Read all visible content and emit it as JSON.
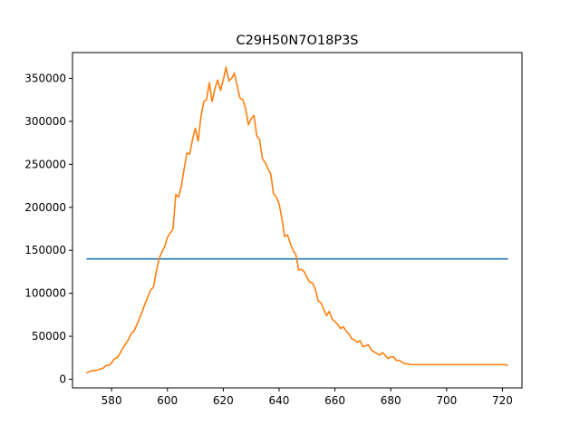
{
  "chart_data": {
    "type": "line",
    "title": "C29H50N7O18P3S",
    "xlabel": "",
    "ylabel": "",
    "xlim": [
      566,
      727
    ],
    "ylim": [
      -10000,
      380000
    ],
    "grid": false,
    "legend": "none",
    "x_ticks": [
      580,
      600,
      620,
      640,
      660,
      680,
      700,
      720
    ],
    "y_ticks": [
      0,
      50000,
      100000,
      150000,
      200000,
      250000,
      300000,
      350000
    ],
    "series": [
      {
        "color": "#1f77b4",
        "x": [
          571,
          722
        ],
        "y": [
          140000,
          140000
        ]
      },
      {
        "color": "#ff7f0e",
        "x": [
          571,
          572,
          573,
          574,
          575,
          576,
          577,
          578,
          579,
          580,
          581,
          582,
          583,
          584,
          585,
          586,
          587,
          588,
          589,
          590,
          591,
          592,
          593,
          594,
          595,
          596,
          597,
          598,
          599,
          600,
          601,
          602,
          603,
          604,
          605,
          606,
          607,
          608,
          609,
          610,
          611,
          612,
          613,
          614,
          615,
          616,
          617,
          618,
          619,
          620,
          621,
          622,
          623,
          624,
          625,
          626,
          627,
          628,
          629,
          630,
          631,
          632,
          633,
          634,
          635,
          636,
          637,
          638,
          639,
          640,
          641,
          642,
          643,
          644,
          645,
          646,
          647,
          648,
          649,
          650,
          651,
          652,
          653,
          654,
          655,
          656,
          657,
          658,
          659,
          660,
          661,
          662,
          663,
          664,
          665,
          666,
          667,
          668,
          669,
          670,
          671,
          672,
          673,
          674,
          675,
          676,
          677,
          678,
          679,
          680,
          681,
          682,
          683,
          684,
          685,
          686,
          687,
          688,
          689,
          690,
          691,
          692,
          693,
          694,
          695,
          696,
          697,
          698,
          699,
          700,
          701,
          702,
          703,
          704,
          705,
          706,
          707,
          708,
          709,
          710,
          711,
          712,
          713,
          714,
          715,
          716,
          717,
          718,
          719,
          720,
          721,
          722
        ],
        "y": [
          7000,
          9000,
          10000,
          10000,
          11000,
          12000,
          13000,
          16000,
          16000,
          19000,
          24000,
          25000,
          30000,
          36000,
          41000,
          46000,
          53000,
          56000,
          63000,
          71000,
          79000,
          88000,
          96000,
          104000,
          107000,
          125000,
          140000,
          148000,
          154000,
          165000,
          170000,
          175000,
          215000,
          212000,
          225000,
          245000,
          263000,
          262000,
          279000,
          292000,
          277000,
          305000,
          323000,
          325000,
          345000,
          323000,
          338000,
          348000,
          336000,
          348000,
          363000,
          347000,
          350000,
          356000,
          341000,
          327000,
          325000,
          315000,
          296000,
          303000,
          307000,
          283000,
          279000,
          257000,
          252000,
          245000,
          239000,
          216000,
          212000,
          204000,
          187000,
          166000,
          168000,
          158000,
          150000,
          145000,
          127000,
          128000,
          125000,
          118000,
          113000,
          112000,
          104000,
          91000,
          89000,
          81000,
          74000,
          79000,
          70000,
          67000,
          64000,
          59000,
          61000,
          56000,
          53000,
          47000,
          46000,
          43000,
          45000,
          38000,
          39000,
          40000,
          34000,
          32000,
          30000,
          28000,
          31000,
          28000,
          24000,
          26000,
          26000,
          22000,
          22000,
          20000,
          18000,
          18000,
          17000,
          17000,
          17000,
          17000,
          17000,
          17000,
          17000,
          17000,
          17000,
          17000,
          17000,
          17000,
          17000,
          17000,
          17000,
          17000,
          17000,
          17000,
          17000,
          17000,
          17000,
          17000,
          17000,
          17000,
          17000,
          17000,
          17000,
          17000,
          17000,
          17000,
          17000,
          17000,
          17000,
          17000,
          17000,
          16000
        ]
      }
    ]
  }
}
